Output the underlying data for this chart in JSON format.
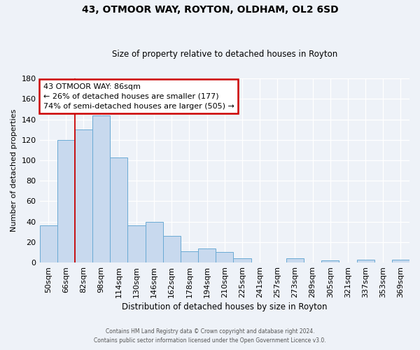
{
  "title": "43, OTMOOR WAY, ROYTON, OLDHAM, OL2 6SD",
  "subtitle": "Size of property relative to detached houses in Royton",
  "xlabel": "Distribution of detached houses by size in Royton",
  "ylabel": "Number of detached properties",
  "bar_color": "#c8d9ee",
  "bar_edge_color": "#6aaad4",
  "background_color": "#eef2f8",
  "grid_color": "#ffffff",
  "categories": [
    "50sqm",
    "66sqm",
    "82sqm",
    "98sqm",
    "114sqm",
    "130sqm",
    "146sqm",
    "162sqm",
    "178sqm",
    "194sqm",
    "210sqm",
    "225sqm",
    "241sqm",
    "257sqm",
    "273sqm",
    "289sqm",
    "305sqm",
    "321sqm",
    "337sqm",
    "353sqm",
    "369sqm"
  ],
  "values": [
    36,
    120,
    130,
    144,
    103,
    36,
    40,
    26,
    11,
    14,
    10,
    4,
    0,
    0,
    4,
    0,
    2,
    0,
    3,
    0,
    3
  ],
  "ylim": [
    0,
    180
  ],
  "yticks": [
    0,
    20,
    40,
    60,
    80,
    100,
    120,
    140,
    160,
    180
  ],
  "property_line_bin_index": 2,
  "annotation_title": "43 OTMOOR WAY: 86sqm",
  "annotation_line1": "← 26% of detached houses are smaller (177)",
  "annotation_line2": "74% of semi-detached houses are larger (505) →",
  "annotation_box_color": "#ffffff",
  "annotation_box_edge": "#cc0000",
  "red_line_color": "#cc0000",
  "footer1": "Contains HM Land Registry data © Crown copyright and database right 2024.",
  "footer2": "Contains public sector information licensed under the Open Government Licence v3.0."
}
